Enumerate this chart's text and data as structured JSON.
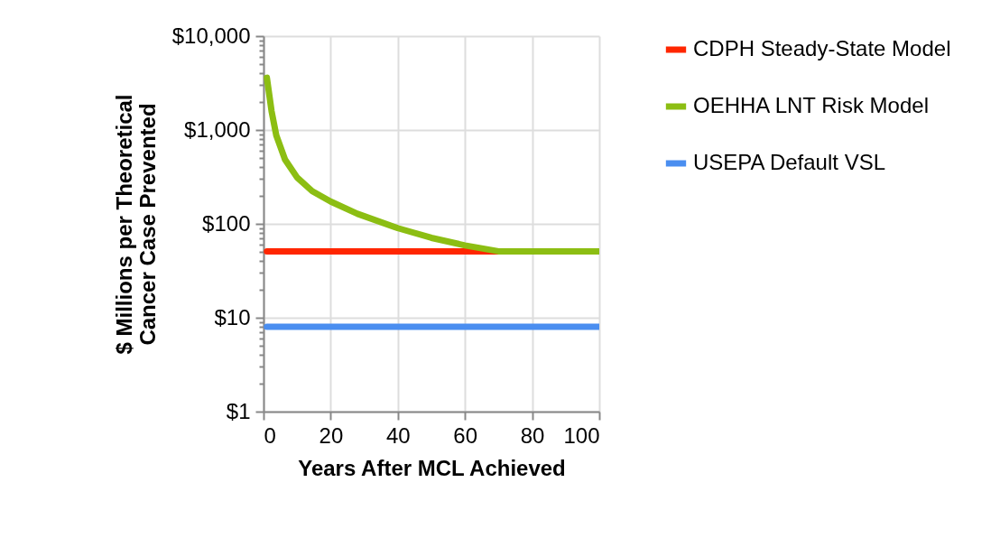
{
  "chart_data": {
    "type": "line",
    "xlabel": "Years After MCL Achieved",
    "ylabel": "$ Millions per Theoretical Cancer Case Prevented",
    "log": true,
    "grid": true,
    "legend": "right",
    "line_style": "solid",
    "marker": "none",
    "xlim": [
      0,
      100
    ],
    "xticks": [
      0,
      20,
      40,
      60,
      80,
      100
    ],
    "ylim": [
      1,
      10000
    ],
    "yticks": [
      {
        "value": 1,
        "label": "$1"
      },
      {
        "value": 2,
        "label": null
      },
      {
        "value": 3,
        "label": null
      },
      {
        "value": 4,
        "label": null
      },
      {
        "value": 5,
        "label": null
      },
      {
        "value": 6,
        "label": null
      },
      {
        "value": 7,
        "label": null
      },
      {
        "value": 8,
        "label": null
      },
      {
        "value": 9,
        "label": null
      },
      {
        "value": 10,
        "label": "$10"
      },
      {
        "value": 20,
        "label": null
      },
      {
        "value": 30,
        "label": null
      },
      {
        "value": 40,
        "label": null
      },
      {
        "value": 50,
        "label": null
      },
      {
        "value": 60,
        "label": null
      },
      {
        "value": 70,
        "label": null
      },
      {
        "value": 80,
        "label": null
      },
      {
        "value": 90,
        "label": null
      },
      {
        "value": 100,
        "label": "$100"
      },
      {
        "value": 200,
        "label": null
      },
      {
        "value": 300,
        "label": null
      },
      {
        "value": 400,
        "label": null
      },
      {
        "value": 500,
        "label": null
      },
      {
        "value": 600,
        "label": null
      },
      {
        "value": 700,
        "label": null
      },
      {
        "value": 800,
        "label": null
      },
      {
        "value": 900,
        "label": null
      },
      {
        "value": 1000,
        "label": "$1,000"
      },
      {
        "value": 2000,
        "label": null
      },
      {
        "value": 3000,
        "label": null
      },
      {
        "value": 4000,
        "label": null
      },
      {
        "value": 5000,
        "label": null
      },
      {
        "value": 6000,
        "label": null
      },
      {
        "value": 7000,
        "label": null
      },
      {
        "value": 8000,
        "label": null
      },
      {
        "value": 9000,
        "label": null
      },
      {
        "value": 10000,
        "label": "$10,000"
      }
    ],
    "series": [
      {
        "name": "CDPH Steady-State Model",
        "color": "#ff2600",
        "x": [
          1,
          70
        ],
        "values": [
          51,
          51
        ]
      },
      {
        "name": "OEHHA LNT Risk Model",
        "color": "#8cbe13",
        "x": [
          1,
          2.4,
          3.8,
          6.4,
          10,
          14.5,
          20,
          28,
          40,
          50,
          60,
          70,
          100
        ],
        "values": [
          3600,
          1580,
          875,
          485,
          312,
          223,
          173,
          128,
          90,
          71,
          59,
          51,
          51
        ]
      },
      {
        "name": "USEPA Default VSL",
        "color": "#4a8ef0",
        "x": [
          1,
          100
        ],
        "values": [
          8,
          8
        ]
      }
    ]
  }
}
